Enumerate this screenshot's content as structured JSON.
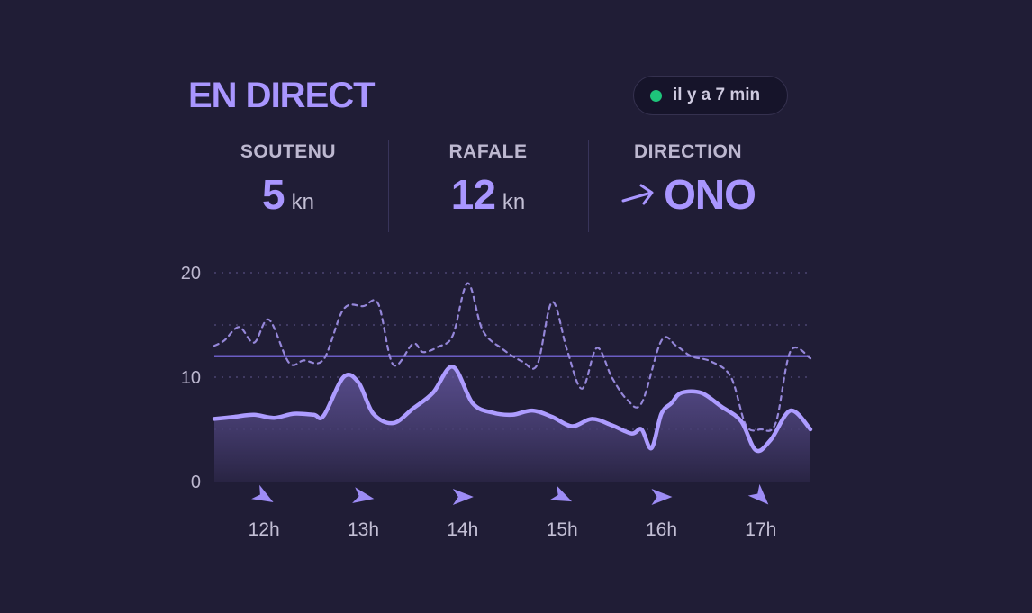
{
  "header": {
    "title": "EN DIRECT",
    "updated": "il y a 7 min"
  },
  "stats": [
    {
      "label": "SOUTENU",
      "value": "5",
      "unit": "kn"
    },
    {
      "label": "RAFALE",
      "value": "12",
      "unit": "kn"
    },
    {
      "label": "DIRECTION",
      "value": "ONO",
      "unit": ""
    }
  ],
  "colors": {
    "accent": "#a996ff",
    "background": "#201d36",
    "live": "#1ec47a"
  },
  "chart_data": {
    "type": "area",
    "ylim": [
      0,
      20
    ],
    "yticks": [
      0,
      10,
      20
    ],
    "x_domain": [
      11.5,
      17.5
    ],
    "x_ticks": [
      {
        "x": 12,
        "label": "12h",
        "wind_dir_deg": 120
      },
      {
        "x": 13,
        "label": "13h",
        "wind_dir_deg": 100
      },
      {
        "x": 14,
        "label": "14h",
        "wind_dir_deg": 90
      },
      {
        "x": 15,
        "label": "15h",
        "wind_dir_deg": 115
      },
      {
        "x": 16,
        "label": "16h",
        "wind_dir_deg": 90
      },
      {
        "x": 17,
        "label": "17h",
        "wind_dir_deg": 135
      }
    ],
    "reference_line": 12,
    "series": [
      {
        "style": "solid-area",
        "x": [
          11.5,
          11.7,
          11.9,
          12.1,
          12.3,
          12.5,
          12.6,
          12.8,
          12.95,
          13.1,
          13.3,
          13.5,
          13.7,
          13.9,
          14.1,
          14.3,
          14.5,
          14.7,
          14.9,
          15.1,
          15.3,
          15.5,
          15.7,
          15.8,
          15.9,
          16.0,
          16.1,
          16.2,
          16.4,
          16.6,
          16.8,
          16.95,
          17.1,
          17.3,
          17.5
        ],
        "y": [
          6.0,
          6.2,
          6.4,
          6.1,
          6.5,
          6.4,
          6.3,
          10.0,
          9.5,
          6.5,
          5.6,
          7.0,
          8.5,
          11.0,
          7.5,
          6.6,
          6.4,
          6.8,
          6.2,
          5.3,
          6.0,
          5.4,
          4.6,
          5.0,
          3.2,
          6.5,
          7.5,
          8.5,
          8.5,
          7.2,
          5.8,
          3.0,
          4.0,
          6.8,
          5.0
        ]
      },
      {
        "style": "dashed",
        "x": [
          11.5,
          11.6,
          11.75,
          11.9,
          12.05,
          12.25,
          12.4,
          12.6,
          12.8,
          13.0,
          13.15,
          13.3,
          13.5,
          13.6,
          13.75,
          13.9,
          14.05,
          14.2,
          14.4,
          14.6,
          14.75,
          14.9,
          15.05,
          15.2,
          15.35,
          15.5,
          15.65,
          15.8,
          16.0,
          16.15,
          16.3,
          16.5,
          16.7,
          16.85,
          17.0,
          17.15,
          17.3,
          17.5
        ],
        "y": [
          13.0,
          13.5,
          14.8,
          13.3,
          15.5,
          11.4,
          11.6,
          11.7,
          16.5,
          16.8,
          17.0,
          11.2,
          13.2,
          12.4,
          12.9,
          14.0,
          19.0,
          14.5,
          12.7,
          11.5,
          11.2,
          17.2,
          12.6,
          8.9,
          12.8,
          10.0,
          7.9,
          7.5,
          13.5,
          13.0,
          12.0,
          11.5,
          10.0,
          5.4,
          5.0,
          5.6,
          12.5,
          11.8
        ]
      }
    ]
  }
}
